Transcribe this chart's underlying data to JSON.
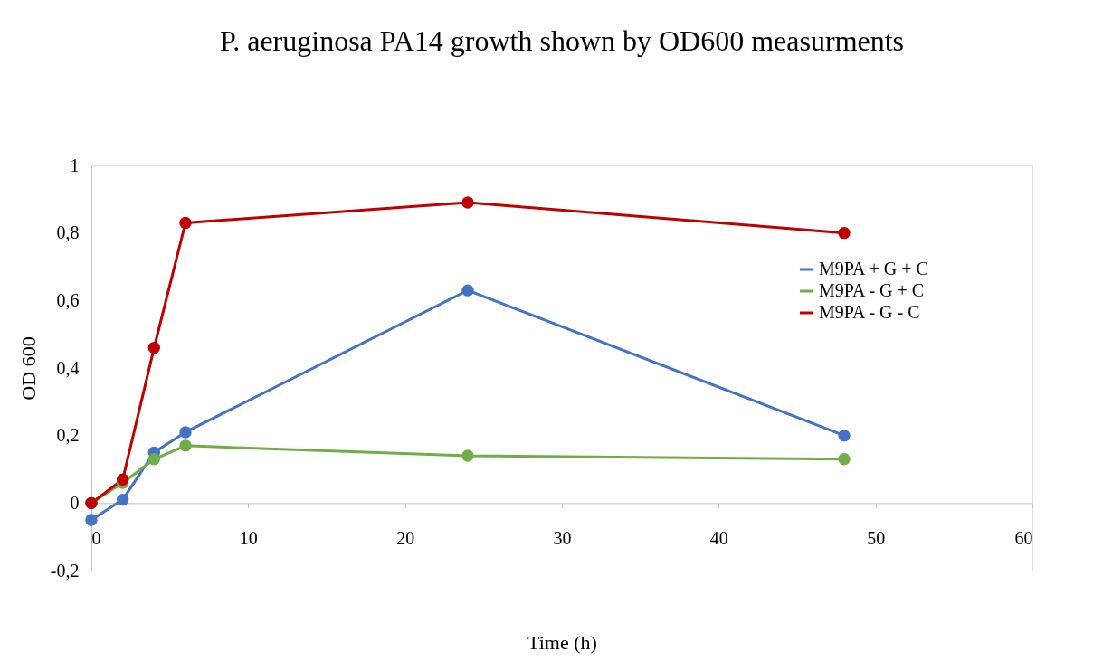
{
  "chart_data": {
    "type": "line",
    "title": "P. aeruginosa PA14 growth shown by OD600 measurments",
    "xlabel": "Time (h)",
    "ylabel": "OD 600",
    "x": [
      0,
      2,
      4,
      6,
      24,
      48
    ],
    "series": [
      {
        "name": "M9PA + G + C",
        "color": "#4472c4",
        "values": [
          -0.05,
          0.01,
          0.15,
          0.21,
          0.63,
          0.2
        ]
      },
      {
        "name": "M9PA - G + C",
        "color": "#70ad47",
        "values": [
          0,
          0.06,
          0.13,
          0.17,
          0.14,
          0.13
        ]
      },
      {
        "name": "M9PA - G - C",
        "color": "#c00000",
        "values": [
          0,
          0.07,
          0.46,
          0.83,
          0.89,
          0.8
        ]
      }
    ],
    "xlim": [
      0,
      60
    ],
    "xticks": [
      0,
      10,
      20,
      30,
      40,
      50,
      60
    ],
    "ylim": [
      -0.2,
      1
    ],
    "yticks": [
      {
        "value": -0.2,
        "label": "-0,2"
      },
      {
        "value": 0,
        "label": "0"
      },
      {
        "value": 0.2,
        "label": "0,2"
      },
      {
        "value": 0.4,
        "label": "0,4"
      },
      {
        "value": 0.6,
        "label": "0,6"
      },
      {
        "value": 0.8,
        "label": "0,8"
      },
      {
        "value": 1,
        "label": "1"
      }
    ],
    "grid": false,
    "legend": "right",
    "marker": "circle",
    "line_style": "solid"
  }
}
